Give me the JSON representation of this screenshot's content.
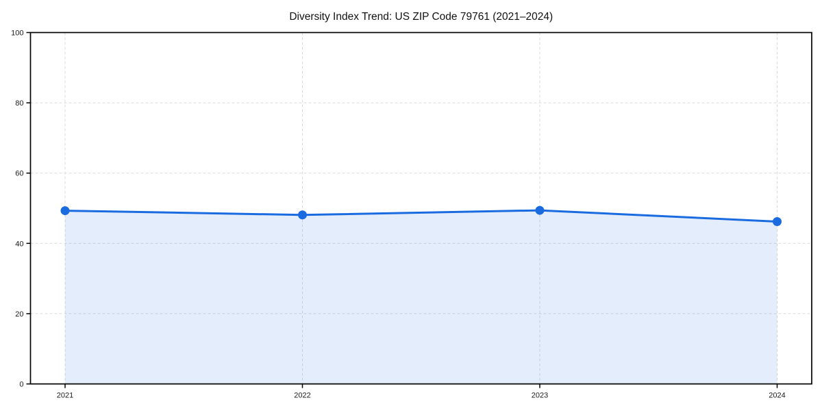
{
  "chart_data": {
    "type": "line",
    "title": "Diversity Index Trend: US ZIP Code 79761 (2021–2024)",
    "x": [
      "2021",
      "2022",
      "2023",
      "2024"
    ],
    "series": [
      {
        "name": "Diversity Index",
        "values": [
          49.3,
          48.1,
          49.4,
          46.2
        ]
      }
    ],
    "xlabel": "",
    "ylabel": "",
    "ylim": [
      0,
      100
    ],
    "yticks": [
      0,
      20,
      40,
      60,
      80,
      100
    ],
    "grid": "dashed-both-axes",
    "legend": "none",
    "marker": "circle",
    "area_fill": true,
    "colors": {
      "line": "#1a6be0",
      "marker": "#1a6be0",
      "area": "#1a6be0",
      "area_opacity": 0.12,
      "grid": "#dbdbdb",
      "axis": "#000000",
      "text": "#1a1a1a",
      "title": "#111111",
      "background": "#ffffff"
    }
  }
}
